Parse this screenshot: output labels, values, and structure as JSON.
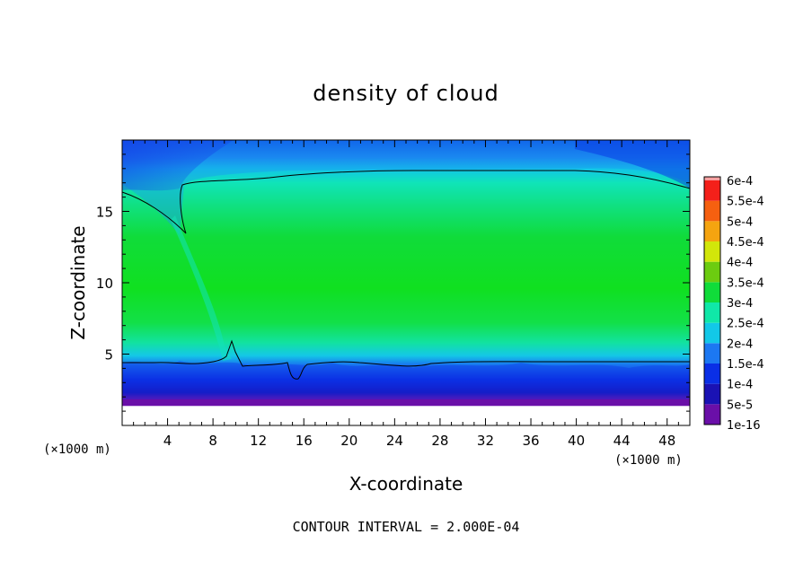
{
  "chart_data": {
    "type": "heatmap",
    "title": "density of cloud",
    "xlabel": "X-coordinate",
    "ylabel": "Z-coordinate",
    "x_unit_label_left": "(×1000 m)",
    "x_unit_label_right": "(×1000 m)",
    "footer": "CONTOUR INTERVAL = 2.000E-04",
    "xlim": [
      0,
      50
    ],
    "ylim": [
      0,
      20
    ],
    "x_ticks": [
      4,
      8,
      12,
      16,
      20,
      24,
      28,
      32,
      36,
      40,
      44,
      48
    ],
    "x_tick_labels": [
      "4",
      "8",
      "12",
      "16",
      "20",
      "24",
      "28",
      "32",
      "36",
      "40",
      "44",
      "48"
    ],
    "y_ticks": [
      5,
      10,
      15
    ],
    "y_tick_labels": [
      "5",
      "10",
      "15"
    ],
    "colorbar": {
      "levels": [
        {
          "label": "1e-16",
          "color": "#6a0fa8"
        },
        {
          "label": "5e-5",
          "color": "#1a12b4"
        },
        {
          "label": "1e-4",
          "color": "#0a2fe6"
        },
        {
          "label": "1.5e-4",
          "color": "#1c78f2"
        },
        {
          "label": "2e-4",
          "color": "#12c8e8"
        },
        {
          "label": "2.5e-4",
          "color": "#10e8a8"
        },
        {
          "label": "3e-4",
          "color": "#10dc3a"
        },
        {
          "label": "3.5e-4",
          "color": "#6ccc10"
        },
        {
          "label": "4e-4",
          "color": "#d2e60a"
        },
        {
          "label": "4.5e-4",
          "color": "#f5a410"
        },
        {
          "label": "5e-4",
          "color": "#f66010"
        },
        {
          "label": "5.5e-4",
          "color": "#f4201a"
        },
        {
          "label": "6e-4",
          "color": "#f8a0a0"
        }
      ]
    },
    "field_summary": {
      "cloud_base_z": 1.5,
      "contour_2e-4_lower_z": 4.4,
      "contour_2e-4_upper_z": 17.7,
      "core_z_range": [
        7,
        14
      ],
      "core_level": "3e-4"
    }
  }
}
